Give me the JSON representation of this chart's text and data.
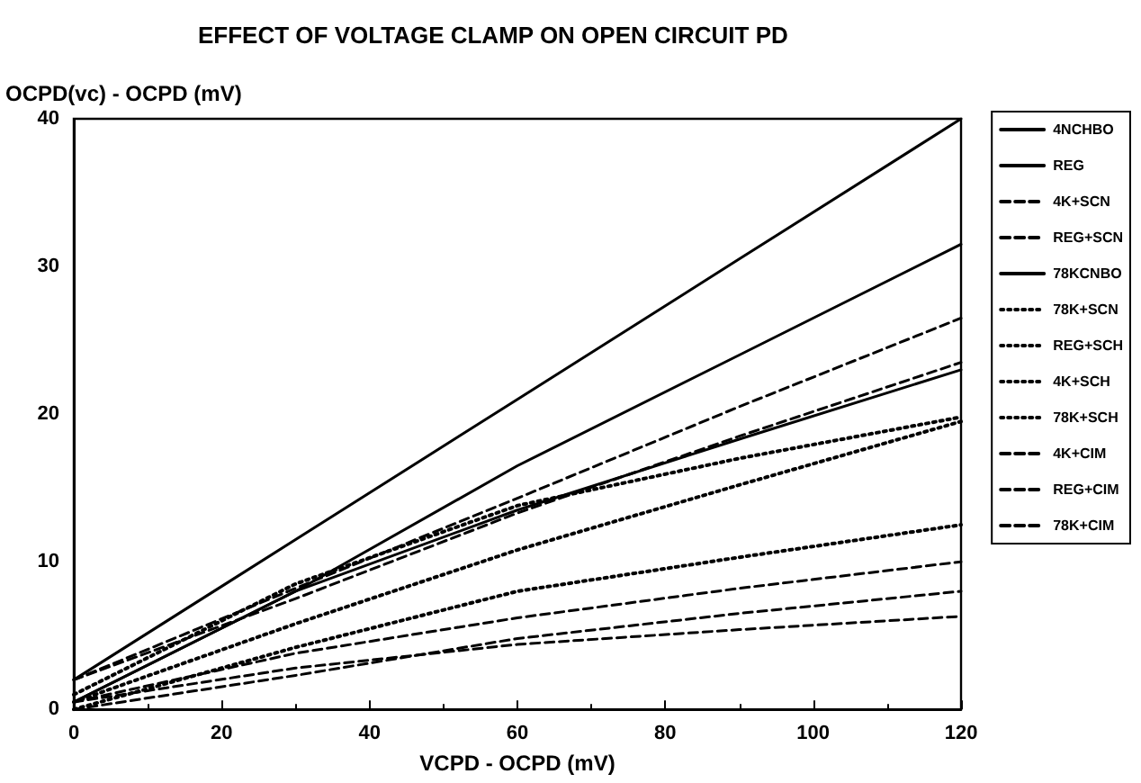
{
  "chart_data": {
    "type": "line",
    "title": "EFFECT OF VOLTAGE CLAMP ON OPEN CIRCUIT PD",
    "xlabel": "VCPD - OCPD (mV)",
    "ylabel": "OCPD(vc) - OCPD (mV)",
    "x": [
      0,
      30,
      60,
      90,
      120
    ],
    "series": [
      {
        "name": "4NCHBO",
        "color": "#000000",
        "line_style": "solid",
        "values": [
          2,
          11.5,
          21,
          30.5,
          40
        ]
      },
      {
        "name": "REG",
        "color": "#000000",
        "line_style": "solid",
        "values": [
          0.5,
          8,
          16.5,
          24,
          31.5
        ]
      },
      {
        "name": "4K+SCN",
        "color": "#000000",
        "line_style": "dashed",
        "values": [
          2,
          8.2,
          14.3,
          20.5,
          26.5
        ]
      },
      {
        "name": "REG+SCN",
        "color": "#000000",
        "line_style": "dashed",
        "values": [
          2,
          7.5,
          13.3,
          18.5,
          23.5
        ]
      },
      {
        "name": "78KCNBO",
        "color": "#000000",
        "line_style": "solid",
        "values": [
          0.5,
          8,
          13.5,
          18.3,
          23
        ]
      },
      {
        "name": "78K+SCN",
        "color": "#000000",
        "line_style": "dotted",
        "values": [
          1,
          8.5,
          13.8,
          17,
          19.8
        ]
      },
      {
        "name": "REG+SCH",
        "color": "#000000",
        "line_style": "dotted",
        "values": [
          0.5,
          5.8,
          10.8,
          15.2,
          19.5
        ]
      },
      {
        "name": "4K+SCH",
        "color": "#000000",
        "line_style": "dotted",
        "values": [
          0,
          4.2,
          8,
          10.3,
          12.5
        ]
      },
      {
        "name": "78K+SCH",
        "color": "#000000",
        "line_style": "dotted",
        "values": [
          null,
          null,
          null,
          null,
          null
        ]
      },
      {
        "name": "4K+CIM",
        "color": "#000000",
        "line_style": "dashed",
        "values": [
          0.5,
          3.8,
          6.2,
          8.2,
          10
        ]
      },
      {
        "name": "REG+CIM",
        "color": "#000000",
        "line_style": "dashed",
        "values": [
          0,
          2.3,
          4.8,
          6.5,
          8
        ]
      },
      {
        "name": "78K+CIM",
        "color": "#000000",
        "line_style": "dashed",
        "values": [
          0.5,
          2.8,
          4.4,
          5.4,
          6.3
        ]
      }
    ],
    "xlim": [
      0,
      120
    ],
    "xticks": [
      0,
      20,
      40,
      60,
      80,
      100,
      120
    ],
    "ylim": [
      0,
      40
    ],
    "yticks": [
      0,
      10,
      20,
      30,
      40
    ],
    "grid": false,
    "legend": "right",
    "marker": "none"
  }
}
